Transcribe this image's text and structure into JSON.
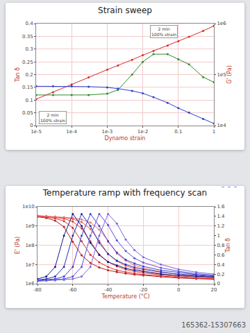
{
  "chart_data": [
    {
      "type": "line",
      "title": "Strain sweep",
      "x_label": "Dynamo strain",
      "y_label": "Tan δ",
      "y2_label": "G' (Pa)",
      "log": true,
      "grid": true,
      "x": [
        1e-05,
        3e-05,
        0.0001,
        0.0003,
        0.001,
        0.002,
        0.005,
        0.01,
        0.02,
        0.05,
        0.1,
        0.2,
        0.5,
        1
      ],
      "xlim": [
        1e-05,
        1
      ],
      "xticks": [
        {
          "value": 1e-05,
          "label": "1e-5"
        },
        {
          "value": 0.0001,
          "label": "1e-4"
        },
        {
          "value": 0.001,
          "label": "1e-3"
        },
        {
          "value": 0.01,
          "label": "1e-2"
        },
        0.1,
        1
      ],
      "ylim": [
        0,
        0.4
      ],
      "yticks": [
        0,
        0.05,
        0.1,
        0.15,
        0.2,
        0.25,
        0.3,
        0.35,
        0.4
      ],
      "y2lim": [
        10000,
        1000000
      ],
      "y2ticks": [
        {
          "value": 10000,
          "label": "1e4"
        },
        {
          "value": 100000,
          "label": "1e5"
        },
        {
          "value": 1000000,
          "label": "1e6"
        }
      ],
      "series": [
        {
          "color": "#d62a2a",
          "axis": "y2",
          "marker": "circle",
          "values": [
            33000,
            45000,
            64000,
            88000,
            125000,
            150000,
            195000,
            240000,
            290000,
            370000,
            450000,
            550000,
            720000,
            900000
          ]
        },
        {
          "color": "#2a3fd0",
          "axis": "y2",
          "marker": "circle",
          "values": [
            59000,
            59000,
            59000,
            58000,
            56000,
            53000,
            48000,
            43000,
            36000,
            28000,
            22000,
            18000,
            13500,
            11000
          ]
        },
        {
          "color": "#2e8b2e",
          "marker": "circle",
          "values": [
            0.12,
            0.12,
            0.12,
            0.12,
            0.125,
            0.14,
            0.2,
            0.25,
            0.28,
            0.28,
            0.26,
            0.24,
            0.19,
            0.17
          ]
        }
      ],
      "annotations": [
        {
          "lines": [
            "2 min",
            "100% strain"
          ],
          "x": 3e-05,
          "y": 0.03
        },
        {
          "lines": [
            "2 min",
            "100% strain"
          ],
          "x": 0.04,
          "y": 0.37
        }
      ]
    },
    {
      "type": "line",
      "title": "Temperature ramp with frequency scan",
      "x_label": "Temperature (°C)",
      "y_label": "E' (Pa)",
      "y2_label": "Tan δ",
      "log": "y",
      "grid": true,
      "x": [
        -80,
        -75,
        -70,
        -65,
        -60,
        -55,
        -50,
        -45,
        -40,
        -35,
        -30,
        -25,
        -20,
        -10,
        0,
        10,
        20
      ],
      "xlim": [
        -80,
        20
      ],
      "xticks": [
        -80,
        -60,
        -40,
        -20,
        0,
        20
      ],
      "ylim": [
        1000000,
        10000000000
      ],
      "yticks": [
        {
          "value": 1000000,
          "label": "1e6"
        },
        {
          "value": 10000000,
          "label": "1e7"
        },
        {
          "value": 100000000,
          "label": "1e8"
        },
        {
          "value": 1000000000,
          "label": "1e9"
        },
        {
          "value": 10000000000,
          "label": "1e10"
        }
      ],
      "y2lim": [
        0,
        1.6
      ],
      "y2ticks": [
        0,
        0.2,
        0.4,
        0.6,
        0.8,
        1,
        1.2,
        1.4,
        1.6
      ],
      "series": [
        {
          "color": "#b71c1c",
          "marker": "circle",
          "values": [
            3000000000,
            2600000000,
            1900000000,
            900000000,
            150000000,
            30000000,
            12000000,
            7000000,
            5000000,
            4000000,
            3400000,
            3000000,
            2700000,
            2300000,
            2000000,
            1800000,
            1700000
          ]
        },
        {
          "color": "#d32f2f",
          "marker": "circle",
          "values": [
            3200000000,
            2900000000,
            2500000000,
            1800000000,
            800000000,
            160000000,
            32000000,
            13000000,
            7500000,
            5000000,
            4000000,
            3400000,
            3000000,
            2500000,
            2100000,
            1900000,
            1800000
          ]
        },
        {
          "color": "#e53935",
          "marker": "circle",
          "values": [
            3300000000,
            3100000000,
            2800000000,
            2400000000,
            1700000000,
            750000000,
            160000000,
            33000000,
            14000000,
            8000000,
            5500000,
            4300000,
            3600000,
            2800000,
            2300000,
            2000000,
            1900000
          ]
        },
        {
          "color": "#ef5350",
          "marker": "circle",
          "values": [
            3400000000,
            3200000000,
            3000000000,
            2700000000,
            2300000000,
            1600000000,
            700000000,
            170000000,
            35000000,
            15000000,
            8500000,
            6000000,
            4600000,
            3300000,
            2600000,
            2200000,
            2000000
          ]
        },
        {
          "color": "#e57373",
          "marker": "circle",
          "values": [
            3500000000,
            3300000000,
            3100000000,
            2900000000,
            2600000000,
            2200000000,
            1500000000,
            650000000,
            170000000,
            37000000,
            16000000,
            9000000,
            6500000,
            4200000,
            3000000,
            2400000,
            2100000
          ]
        },
        {
          "color": "#0d1a8c",
          "axis": "y2",
          "marker": "circle",
          "values": [
            0.1,
            0.15,
            0.35,
            1.0,
            1.45,
            1.2,
            0.85,
            0.6,
            0.45,
            0.38,
            0.32,
            0.28,
            0.25,
            0.2,
            0.17,
            0.15,
            0.14
          ]
        },
        {
          "color": "#1f2fb5",
          "axis": "y2",
          "marker": "circle",
          "values": [
            0.08,
            0.1,
            0.15,
            0.35,
            1.0,
            1.45,
            1.2,
            0.85,
            0.62,
            0.48,
            0.4,
            0.34,
            0.3,
            0.24,
            0.2,
            0.17,
            0.15
          ]
        },
        {
          "color": "#3a3fd0",
          "axis": "y2",
          "marker": "circle",
          "values": [
            0.07,
            0.08,
            0.1,
            0.15,
            0.35,
            1.0,
            1.45,
            1.2,
            0.88,
            0.65,
            0.5,
            0.42,
            0.36,
            0.28,
            0.23,
            0.19,
            0.16
          ]
        },
        {
          "color": "#5c4fd8",
          "axis": "y2",
          "marker": "circle",
          "values": [
            0.06,
            0.07,
            0.08,
            0.1,
            0.15,
            0.35,
            1.0,
            1.45,
            1.22,
            0.9,
            0.68,
            0.53,
            0.44,
            0.33,
            0.26,
            0.21,
            0.18
          ]
        },
        {
          "color": "#7a63e0",
          "axis": "y2",
          "marker": "circle",
          "values": [
            0.05,
            0.06,
            0.07,
            0.08,
            0.1,
            0.15,
            0.35,
            1.0,
            1.45,
            1.25,
            0.92,
            0.7,
            0.55,
            0.4,
            0.3,
            0.24,
            0.2
          ]
        }
      ]
    }
  ],
  "footer": "165362-15307663"
}
